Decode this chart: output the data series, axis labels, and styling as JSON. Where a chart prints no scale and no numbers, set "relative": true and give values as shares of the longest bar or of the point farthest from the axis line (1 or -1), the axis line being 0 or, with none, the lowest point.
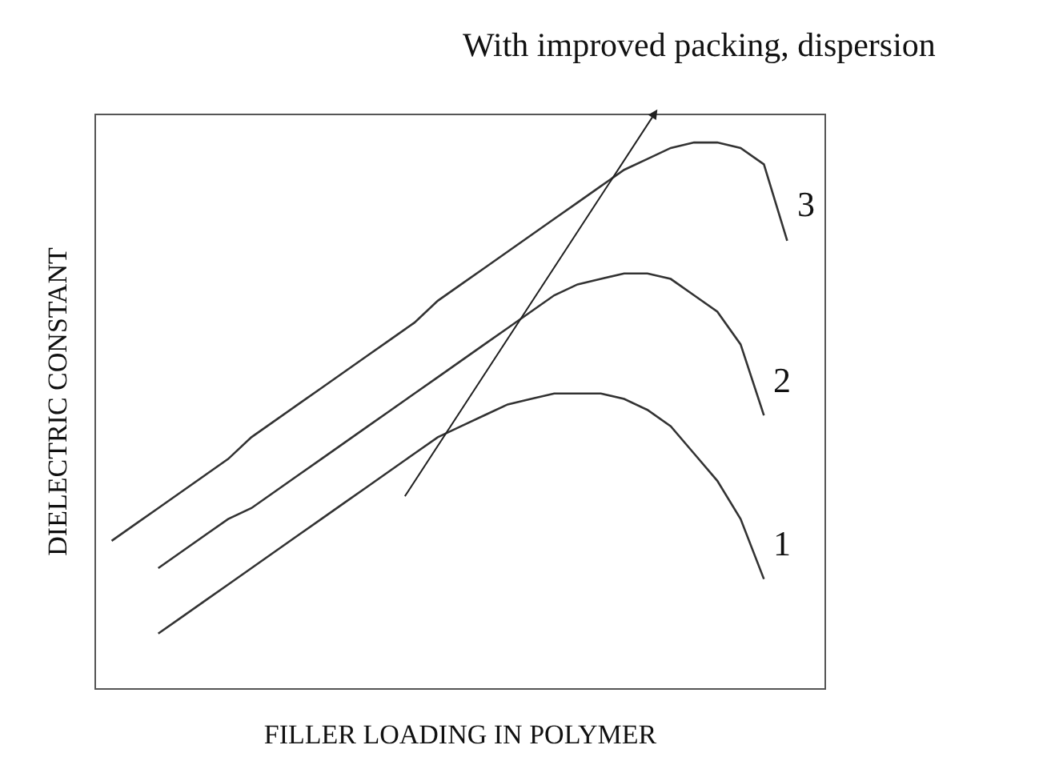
{
  "chart_data": {
    "type": "line",
    "relative": true,
    "xlabel": "FILLER LOADING IN POLYMER",
    "ylabel": "DIELECTRIC CONSTANT",
    "annotations": [
      "With improved packing, dispersion"
    ],
    "categories": [
      null,
      null,
      null,
      null,
      null,
      null,
      null,
      null,
      null,
      null,
      null,
      null,
      null,
      null,
      null,
      null,
      null,
      null,
      null,
      null,
      null,
      null,
      null,
      null,
      null,
      null,
      null,
      null,
      null,
      null
    ],
    "series": [
      {
        "name": "1",
        "color": "#333333",
        "values": [
          null,
          null,
          0.1,
          0.13,
          0.16,
          0.19,
          0.22,
          0.25,
          0.28,
          0.31,
          0.34,
          0.37,
          0.4,
          0.43,
          0.46,
          0.48,
          0.5,
          0.52,
          0.53,
          0.54,
          0.54,
          0.54,
          0.53,
          0.51,
          0.48,
          0.43,
          0.38,
          0.31,
          0.2,
          null
        ]
      },
      {
        "name": "2",
        "color": "#333333",
        "values": [
          null,
          null,
          0.22,
          0.25,
          0.28,
          0.31,
          0.33,
          0.36,
          0.39,
          0.42,
          0.45,
          0.48,
          0.51,
          0.54,
          0.57,
          0.6,
          0.63,
          0.66,
          0.69,
          0.72,
          0.74,
          0.75,
          0.76,
          0.76,
          0.75,
          0.72,
          0.69,
          0.63,
          0.5,
          null
        ]
      },
      {
        "name": "3",
        "color": "#333333",
        "values": [
          0.27,
          0.3,
          0.33,
          0.36,
          0.39,
          0.42,
          0.46,
          0.49,
          0.52,
          0.55,
          0.58,
          0.61,
          0.64,
          0.67,
          0.71,
          0.74,
          0.77,
          0.8,
          0.83,
          0.86,
          0.89,
          0.92,
          0.95,
          0.97,
          0.99,
          1.0,
          1.0,
          0.99,
          0.96,
          0.82
        ]
      }
    ],
    "legend": false,
    "line_style": "solid",
    "marker": "none"
  }
}
